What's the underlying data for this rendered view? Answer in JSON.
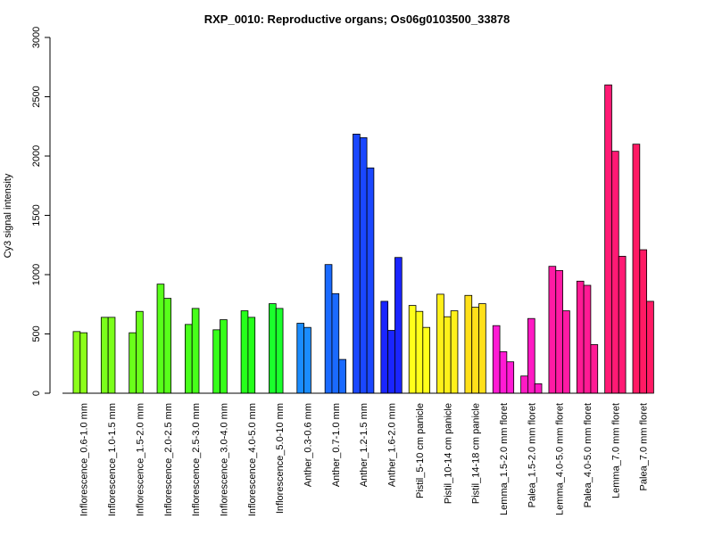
{
  "chart_data": {
    "type": "bar",
    "title": "RXP_0010: Reproductive organs; Os06g0103500_33878",
    "xlabel": "",
    "ylabel": "Cy3 signal intensity",
    "ylim": [
      0,
      3000
    ],
    "yticks": [
      0,
      500,
      1000,
      1500,
      2000,
      2500,
      3000
    ],
    "groups": [
      {
        "label": "Inflorescence_0.6-1.0 mm",
        "values": [
          520,
          510
        ],
        "color": "#8cff1a"
      },
      {
        "label": "Inflorescence_1.0-1.5 mm",
        "values": [
          640,
          640
        ],
        "color": "#7bff1a"
      },
      {
        "label": "Inflorescence_1.5-2.0 mm",
        "values": [
          510,
          690
        ],
        "color": "#6aff1a"
      },
      {
        "label": "Inflorescence_2.0-2.5 mm",
        "values": [
          920,
          800
        ],
        "color": "#58ff1a"
      },
      {
        "label": "Inflorescence_2.5-3.0 mm",
        "values": [
          580,
          715
        ],
        "color": "#47ff1a"
      },
      {
        "label": "Inflorescence_3.0-4.0 mm",
        "values": [
          535,
          620
        ],
        "color": "#36ff1a"
      },
      {
        "label": "Inflorescence_4.0-5.0 mm",
        "values": [
          695,
          640
        ],
        "color": "#25ff1a"
      },
      {
        "label": "Inflorescence_5.0-10 mm",
        "values": [
          755,
          715
        ],
        "color": "#1aff2c"
      },
      {
        "label": "Anther_0.3-0.6 mm",
        "values": [
          590,
          555
        ],
        "color": "#1a8cff"
      },
      {
        "label": "Anther_0.7-1.0 mm",
        "values": [
          1085,
          840,
          285
        ],
        "color": "#1a6aff"
      },
      {
        "label": "Anther_1.2-1.5 mm",
        "values": [
          2185,
          2155,
          1900
        ],
        "color": "#1a47ff"
      },
      {
        "label": "Anther_1.6-2.0 mm",
        "values": [
          775,
          530,
          1145
        ],
        "color": "#1a25ff"
      },
      {
        "label": "Pistil_5-10 cm panicle",
        "values": [
          740,
          690,
          555
        ],
        "color": "#ffff1a"
      },
      {
        "label": "Pistil_10-14 cm panicle",
        "values": [
          835,
          645,
          695
        ],
        "color": "#fff01a"
      },
      {
        "label": "Pistil_14-18 cm panicle",
        "values": [
          825,
          725,
          755
        ],
        "color": "#ffe01a"
      },
      {
        "label": "Lemma_1.5-2.0 mm floret",
        "values": [
          570,
          350,
          265
        ],
        "color": "#ff1ad4"
      },
      {
        "label": "Palea_1.5-2.0 mm floret",
        "values": [
          145,
          630,
          80
        ],
        "color": "#ff1ac4"
      },
      {
        "label": "Lemma_4.0-5.0 mm floret",
        "values": [
          1070,
          1035,
          695
        ],
        "color": "#ff1aa4"
      },
      {
        "label": "Palea_4.0-5.0 mm floret",
        "values": [
          945,
          910,
          410
        ],
        "color": "#ff1a94"
      },
      {
        "label": "Lemma_7.0 mm floret",
        "values": [
          2600,
          2040,
          1155
        ],
        "color": "#ff1a74"
      },
      {
        "label": "Palea_7.0 mm floret",
        "values": [
          2100,
          1210,
          775
        ],
        "color": "#ff1a64"
      }
    ]
  }
}
